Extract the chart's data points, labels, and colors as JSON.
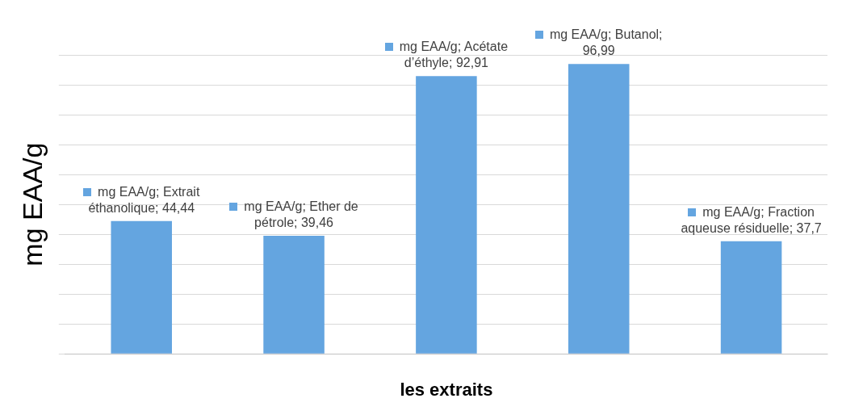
{
  "chart_data": {
    "type": "bar",
    "xlabel": "les extraits",
    "ylabel": "mg EAA/g",
    "categories": [
      null,
      null,
      null,
      null,
      null
    ],
    "series": [
      {
        "color": "#64a5e0",
        "values": [
          44.44,
          39.46,
          92.91,
          96.99,
          37.7
        ],
        "value_labels": [
          "mg EAA/g; Extrait éthanolique; 44,44",
          "mg EAA/g; Ether de pétrole; 39,46",
          "mg EAA/g; Acétate d’éthyle; 92,91",
          "mg EAA/g; Butanol; 96,99",
          "mg EAA/g; Fraction aqueuse résiduelle; 37,7"
        ]
      }
    ],
    "ylim": [
      0,
      100
    ],
    "yticks": [
      {
        "value": 0,
        "label": null
      },
      {
        "value": 10,
        "label": null
      },
      {
        "value": 20,
        "label": null
      },
      {
        "value": 30,
        "label": null
      },
      {
        "value": 40,
        "label": null
      },
      {
        "value": 50,
        "label": null
      },
      {
        "value": 60,
        "label": null
      },
      {
        "value": 70,
        "label": null
      },
      {
        "value": 80,
        "label": null
      },
      {
        "value": 90,
        "label": null
      },
      {
        "value": 100,
        "label": null
      }
    ],
    "grid": "y"
  }
}
